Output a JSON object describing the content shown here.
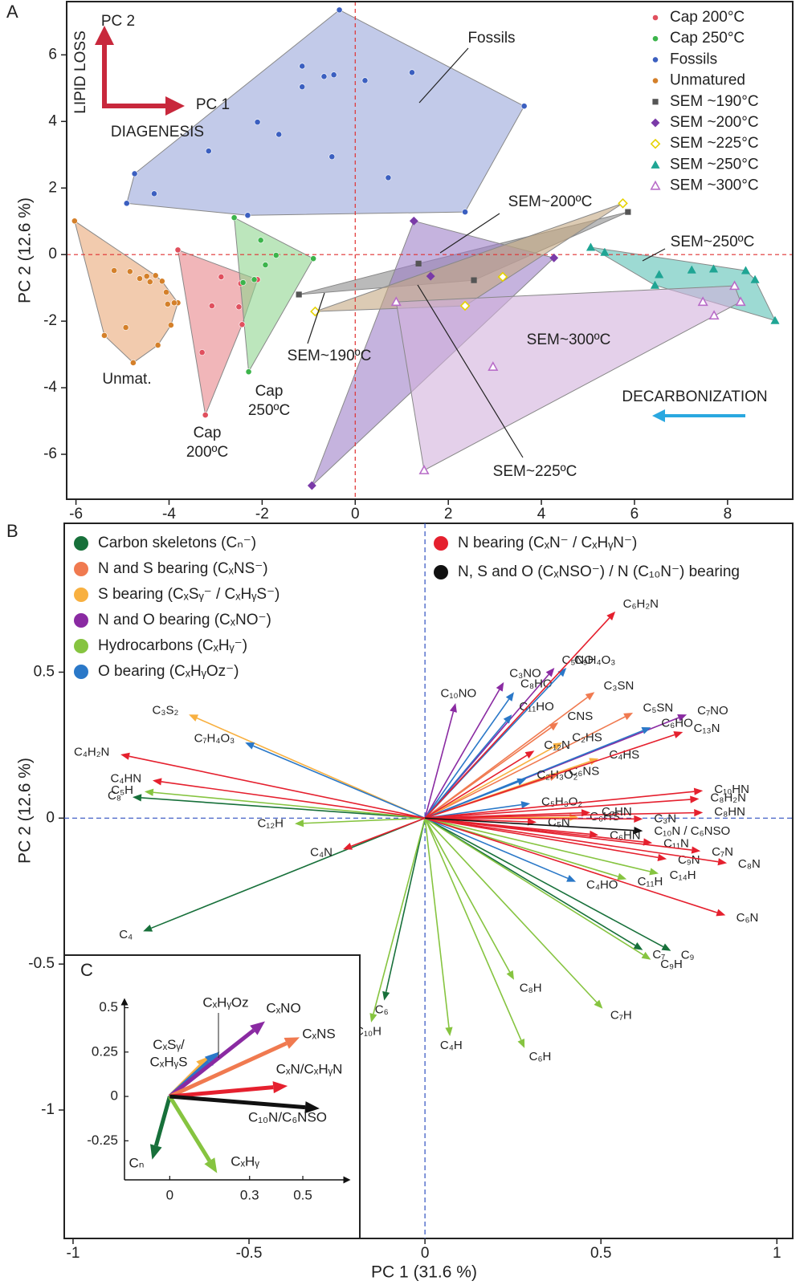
{
  "chart_data": [
    {
      "panel": "A",
      "type": "scatter",
      "y_label": "PC 2  (12.6 %)",
      "xlim": [
        -6.2,
        9.4
      ],
      "ylim": [
        -7.35,
        7.6
      ],
      "xticks": [
        -6,
        -4,
        -2,
        0,
        2,
        4,
        6,
        8
      ],
      "yticks": [
        -6,
        -4,
        -2,
        0,
        2,
        4,
        6
      ],
      "series": [
        {
          "name": "Cap 200°C",
          "color": "#e0505e",
          "area_color": "#e8868a",
          "marker": "circle",
          "x": [
            -3.81,
            -3.22,
            -3.29,
            -3.08,
            -2.88,
            -2.46,
            -2.5,
            -2.43,
            -2.1
          ],
          "y": [
            0.14,
            -4.82,
            -2.94,
            -1.54,
            -0.67,
            -0.87,
            -1.57,
            -2.1,
            -0.75
          ]
        },
        {
          "name": "Cap 250°C",
          "color": "#3cb44b",
          "area_color": "#8fd68f",
          "marker": "circle",
          "x": [
            -2.6,
            -0.9,
            -2.29,
            -2.03,
            -1.7,
            -1.93,
            -2.41,
            -2.17
          ],
          "y": [
            1.11,
            -0.12,
            -3.52,
            0.43,
            -0.02,
            -0.31,
            -0.84,
            -0.75
          ]
        },
        {
          "name": "Fossils",
          "color": "#3b5fc0",
          "area_color": "#9aa6da",
          "marker": "circle",
          "x": [
            -0.34,
            -4.91,
            -4.74,
            -4.32,
            -1.14,
            -0.67,
            -0.46,
            -1.14,
            0.21,
            1.22,
            -3.15,
            -2.1,
            -1.64,
            -0.5,
            0.71,
            2.36,
            -2.31,
            3.63
          ],
          "y": [
            7.35,
            1.54,
            2.43,
            1.83,
            5.66,
            5.35,
            5.4,
            5.04,
            5.23,
            5.47,
            3.11,
            3.98,
            3.61,
            2.94,
            2.31,
            1.28,
            1.18,
            4.46
          ]
        },
        {
          "name": "Unmatured",
          "color": "#d4802a",
          "area_color": "#e9a878",
          "marker": "circle",
          "x": [
            -6.03,
            -5.39,
            -4.77,
            -4.93,
            -4.24,
            -3.96,
            -3.81,
            -4.03,
            -5.18,
            -4.84,
            -4.63,
            -4.48,
            -4.29,
            -4.41,
            -4.15,
            -4.06,
            -3.89
          ],
          "y": [
            1.01,
            -2.43,
            -3.25,
            -2.19,
            -2.72,
            -2.12,
            -1.45,
            -1.49,
            -0.48,
            -0.51,
            -0.72,
            -0.65,
            -0.63,
            -0.82,
            -0.8,
            -1.13,
            -1.45
          ]
        },
        {
          "name": "SEM ~190°C",
          "color": "#555555",
          "area_color": "#8c8c8c",
          "marker": "square",
          "x": [
            -1.21,
            1.36,
            2.55,
            5.86
          ],
          "y": [
            -1.2,
            -0.27,
            -0.77,
            1.28
          ]
        },
        {
          "name": "SEM ~200°C",
          "color": "#7a3aa8",
          "area_color": "#9f80c8",
          "marker": "diamond",
          "x": [
            1.26,
            4.27,
            1.62,
            -0.93
          ],
          "y": [
            1.01,
            -0.1,
            -0.65,
            -6.94
          ]
        },
        {
          "name": "SEM ~225°C",
          "color": "#e6d200",
          "area_color": "#c4a882",
          "marker": "diamond-open",
          "x": [
            5.75,
            -0.86,
            3.17,
            2.36
          ],
          "y": [
            1.54,
            -1.71,
            -0.67,
            -1.54
          ]
        },
        {
          "name": "SEM ~250°C",
          "color": "#1fa594",
          "area_color": "#5cc2b6",
          "marker": "triangle",
          "x": [
            5.06,
            5.36,
            6.53,
            6.44,
            7.23,
            7.7,
            8.39,
            8.59,
            9.02
          ],
          "y": [
            0.22,
            0.07,
            -0.6,
            -0.92,
            -0.46,
            -0.43,
            -0.48,
            -0.75,
            -1.98
          ]
        },
        {
          "name": "SEM ~300°C",
          "color": "#b86cc8",
          "area_color": "#d2b0dc",
          "marker": "triangle-open",
          "x": [
            0.88,
            1.48,
            2.96,
            7.47,
            7.71,
            8.15,
            8.28
          ],
          "y": [
            -1.42,
            -6.48,
            -3.37,
            -1.42,
            -1.83,
            -0.94,
            -1.42
          ]
        }
      ],
      "annotations": [
        "Fossils",
        "SEM~200ºC",
        "SEM~250ºC",
        "SEM~300ºC",
        "SEM~190ºC",
        "SEM~225ºC",
        "Unmat.",
        "Cap\n200ºC",
        "Cap\n250ºC"
      ],
      "arrow_labels": [
        "LIPID LOSS",
        "PC 2",
        "PC 1",
        "DIAGENESIS",
        "DECARBONIZATION"
      ]
    },
    {
      "panel": "B",
      "type": "biplot",
      "x_label": "PC 1 (31.6 %)",
      "y_label": "PC 2  (12.6 %)",
      "xlim": [
        -1.025,
        1.045
      ],
      "ylim": [
        -1.44,
        1.01
      ],
      "xticks": [
        -1,
        -0.5,
        0,
        0.5,
        1
      ],
      "yticks": [
        0.5,
        0,
        -0.5,
        -1
      ],
      "series": [
        {
          "name": "Carbon skeletons (Cₙ⁻)",
          "color": "#17703a",
          "labels": [
            "C₈",
            "C₄",
            "C₆",
            "C₉",
            "C₇"
          ],
          "x": [
            -0.831,
            -0.801,
            -0.116,
            0.699,
            0.619
          ],
          "y": [
            0.072,
            -0.388,
            -0.625,
            -0.455,
            -0.452
          ]
        },
        {
          "name": "N and S bearing (CₓNS⁻)",
          "color": "#f07a50",
          "labels": [
            "C₃SN",
            "CNS",
            "C₅SN",
            "C₆NS"
          ],
          "x": [
            0.482,
            0.379,
            0.591,
            0.379
          ],
          "y": [
            0.432,
            0.328,
            0.361,
            0.149
          ]
        },
        {
          "name": "S bearing (CₓSᵧ⁻ / CₓHᵧS⁻)",
          "color": "#f8b040",
          "labels": [
            "C₃S₂",
            "C₂HS",
            "C₄HS",
            "C₆HS"
          ],
          "x": [
            -0.671,
            0.39,
            0.493,
            0.436
          ],
          "y": [
            0.355,
            0.259,
            0.204,
            0.003
          ]
        },
        {
          "name": "N and O bearing (CₓNO⁻)",
          "color": "#8a2aa2",
          "labels": [
            "C₃NO",
            "C₅NO",
            "C₁₀NO",
            "C₇NO"
          ],
          "x": [
            0.224,
            0.368,
            0.087,
            0.744
          ],
          "y": [
            0.466,
            0.515,
            0.394,
            0.355
          ]
        },
        {
          "name": "Hydrocarbons (CₓHᵧ⁻)",
          "color": "#86c440",
          "labels": [
            "C₅H",
            "C₁₂H",
            "C₁₁H",
            "C₁₄H",
            "C₉H",
            "C₈H",
            "C₇H",
            "C₆H",
            "C₄H",
            "C₁₀H"
          ],
          "x": [
            -0.797,
            -0.37,
            0.573,
            0.664,
            0.642,
            0.253,
            0.505,
            0.283,
            0.071,
            -0.153
          ],
          "y": [
            0.091,
            -0.019,
            -0.209,
            -0.19,
            -0.485,
            -0.554,
            -0.653,
            -0.788,
            -0.747,
            -0.7
          ]
        },
        {
          "name": "O bearing (CₓHᵧOz⁻)",
          "color": "#2a78c8",
          "labels": [
            "C₈HO",
            "C₉H₄O₃",
            "C₁₁HO",
            "C₆HO",
            "C₇H₄O₃",
            "C₂H₃O₂",
            "C₅H₃O₂",
            "C₄HO"
          ],
          "x": [
            0.253,
            0.402,
            0.247,
            0.642,
            -0.511,
            0.288,
            0.299,
            0.429
          ],
          "y": [
            0.432,
            0.515,
            0.355,
            0.311,
            0.259,
            0.135,
            0.05,
            -0.218
          ]
        },
        {
          "name": "N bearing (CₓN⁻ / CₓHᵧN⁻)",
          "color": "#e5202e",
          "labels": [
            "C₆H₂N",
            "C₁₃N",
            "C₁₂N",
            "C₁₀HN",
            "C₈H₂N",
            "C₈HN",
            "C₇HN",
            "C₅N",
            "C₃N",
            "C₆HN",
            "C₁₁N",
            "C₉N",
            "C₇N",
            "C₈N",
            "C₆N",
            "C₄H₂N",
            "C₄HN",
            "C₄N"
          ],
          "x": [
            0.541,
            0.733,
            0.311,
            0.79,
            0.779,
            0.79,
            0.47,
            0.317,
            0.619,
            0.493,
            0.646,
            0.687,
            0.783,
            0.858,
            0.854,
            -0.865,
            -0.774,
            -0.233
          ],
          "y": [
            0.708,
            0.295,
            0.231,
            0.094,
            0.066,
            0.019,
            0.019,
            -0.014,
            -0.003,
            -0.058,
            -0.085,
            -0.14,
            -0.113,
            -0.154,
            -0.333,
            0.218,
            0.129,
            -0.107
          ]
        },
        {
          "name": "N, S and O (CₓNSO⁻) / N (C₁₀N⁻) bearing",
          "color": "#111111",
          "labels": [
            "C₁₀N / C₆NSO"
          ],
          "x": [
            0.619
          ],
          "y": [
            -0.044
          ]
        }
      ]
    },
    {
      "panel": "C",
      "type": "biplot",
      "xlim": [
        -0.17,
        0.69
      ],
      "ylim": [
        -0.47,
        0.57
      ],
      "xticks": [
        0,
        0.3,
        0.5
      ],
      "yticks": [
        0.5,
        0.25,
        0,
        -0.25
      ],
      "arrows": {
        "labels": [
          "Cₙ",
          "CₓHᵧ",
          "CₓSᵧ/\nCₓHᵧS",
          "CₓHᵧOz",
          "CₓNO",
          "CₓNS",
          "CₓN/CₓHᵧN",
          "C₁₀N/C₆NSO"
        ],
        "colors": [
          "#17703a",
          "#86c440",
          "#f8b040",
          "#2a78c8",
          "#8a2aa2",
          "#f07a50",
          "#e5202e",
          "#111111"
        ],
        "x": [
          -0.066,
          0.178,
          0.154,
          0.187,
          0.358,
          0.488,
          0.443,
          0.563
        ],
        "y": [
          -0.356,
          -0.432,
          0.23,
          0.252,
          0.423,
          0.333,
          0.059,
          -0.068
        ]
      }
    }
  ]
}
